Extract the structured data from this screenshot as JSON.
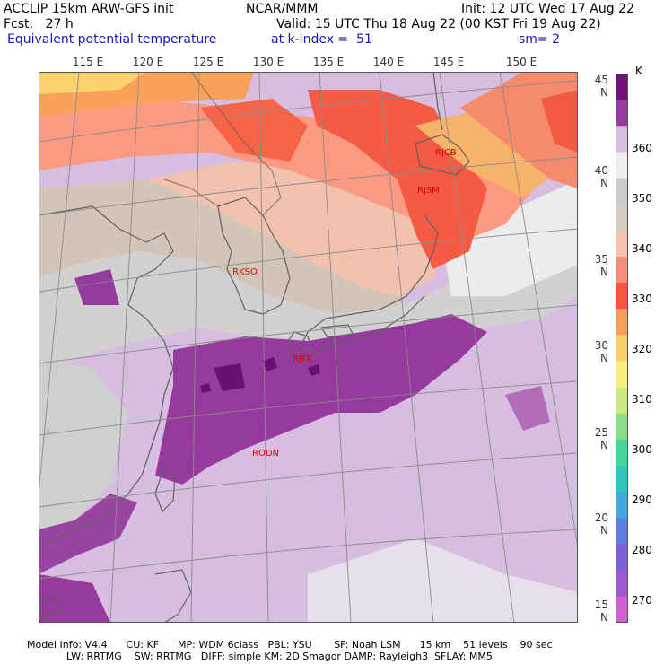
{
  "header": {
    "line1_left": "ACCLIP 15km ARW-GFS init",
    "line1_mid": "NCAR/MMM",
    "line1_right": "Init: 12 UTC Wed 17 Aug 22",
    "line2_left": "Fcst:   27 h",
    "line2_right": "Valid: 15 UTC Thu 18 Aug 22 (00 KST Fri 19 Aug 22)",
    "line3_left": "Equivalent potential temperature",
    "line3_mid": "at k-index =  51",
    "line3_right": "sm= 2"
  },
  "map": {
    "lon_labels": [
      "115 E",
      "120 E",
      "125 E",
      "130 E",
      "135 E",
      "140 E",
      "145 E",
      "150 E"
    ],
    "lat_labels": [
      "45 N",
      "40 N",
      "35 N",
      "30 N",
      "25 N",
      "20 N",
      "15 N"
    ],
    "stations": [
      {
        "id": "RJCB"
      },
      {
        "id": "RJSM"
      },
      {
        "id": "RKSO"
      },
      {
        "id": "RJFK"
      },
      {
        "id": "RODN"
      }
    ]
  },
  "colorbar": {
    "unit": "K",
    "tick_labels": [
      "360",
      "350",
      "340",
      "330",
      "320",
      "310",
      "300",
      "290",
      "280",
      "270"
    ],
    "colors_top_to_bottom": [
      "#70107a",
      "#963a9e",
      "#d7bde0",
      "#eeeeee",
      "#cacaca",
      "#d6cbc0",
      "#f6c2b0",
      "#fa8d78",
      "#f6553e",
      "#f79f57",
      "#fbd06a",
      "#f8f078",
      "#caea7a",
      "#86e086",
      "#45d49a",
      "#2fc6c0",
      "#3fa8dc",
      "#5f7fe0",
      "#8060d8",
      "#a05ad0",
      "#d060d0"
    ]
  },
  "footer": {
    "line1": "Model Info: V4.4      CU: KF      MP: WDM 6class   PBL: YSU       SF: Noah LSM      15 km    51 levels    90 sec",
    "line2": "LW: RRTMG    SW: RRTMG   DIFF: simple KM: 2D Smagor DAMP: Rayleigh3  SFLAY: MM5"
  }
}
